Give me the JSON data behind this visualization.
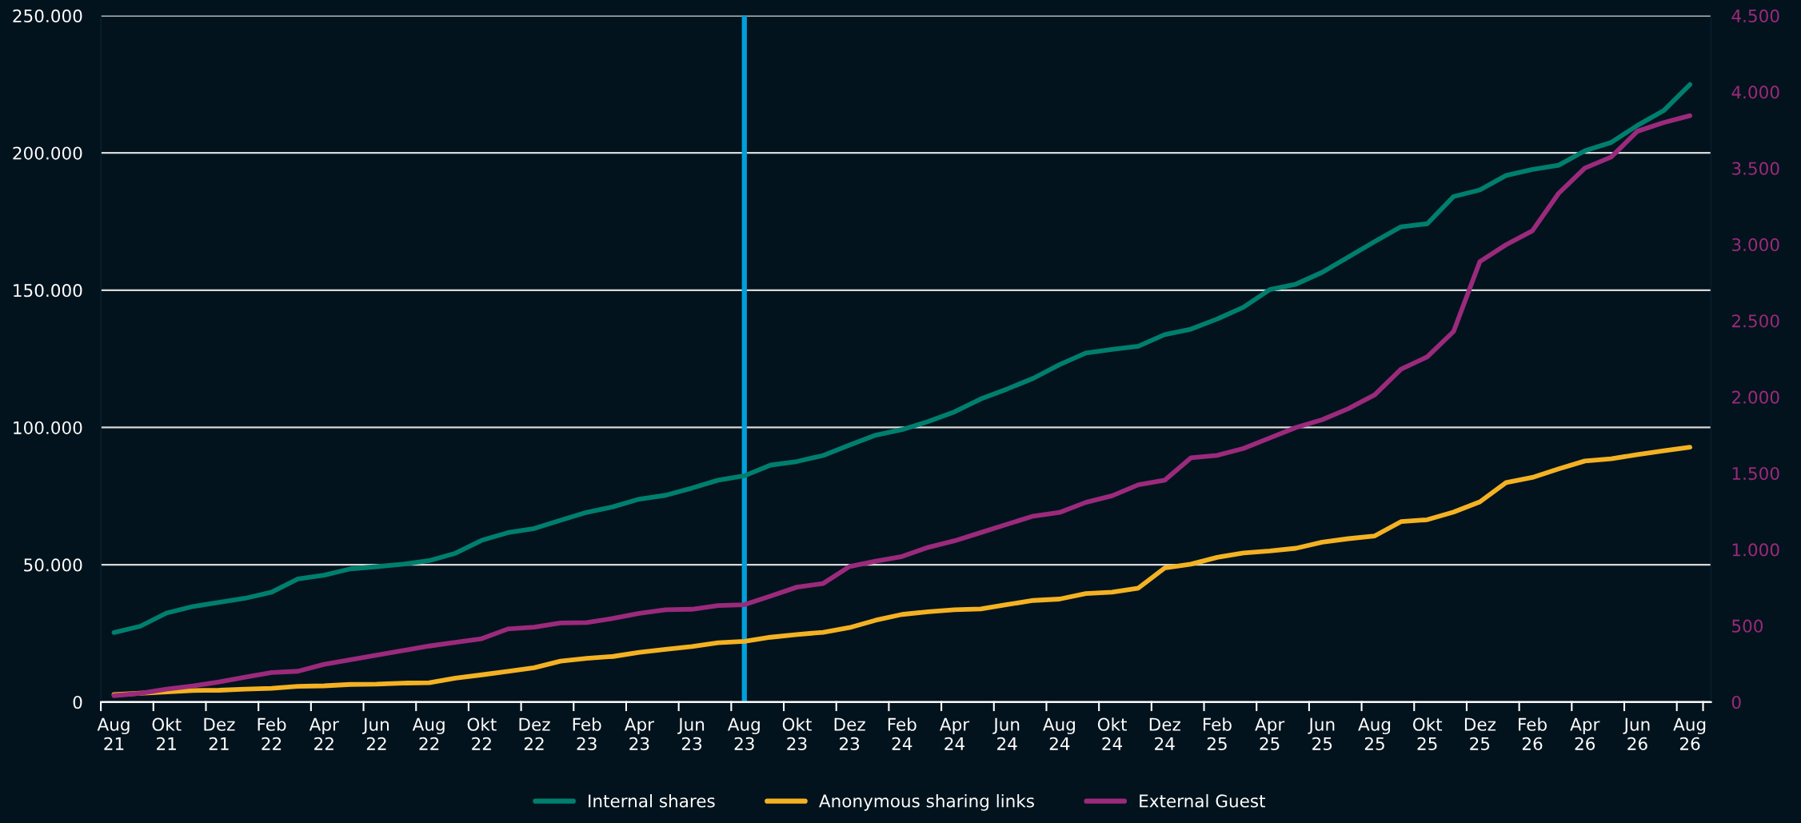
{
  "chart_data": {
    "type": "line",
    "categories": [
      "Aug\n21",
      null,
      "Okt\n21",
      null,
      "Dez\n21",
      null,
      "Feb\n22",
      null,
      "Apr\n22",
      null,
      "Jun\n22",
      null,
      "Aug\n22",
      null,
      "Okt\n22",
      null,
      "Dez\n22",
      null,
      "Feb\n23",
      null,
      "Apr\n23",
      null,
      "Jun\n23",
      null,
      "Aug\n23",
      null,
      "Okt\n23",
      null,
      "Dez\n23",
      null,
      "Feb\n24",
      null,
      "Apr\n24",
      null,
      "Jun\n24",
      null,
      "Aug\n24",
      null,
      "Okt\n24",
      null,
      "Dez\n24",
      null,
      "Feb\n25",
      null,
      "Apr\n25",
      null,
      "Jun\n25",
      null,
      "Aug\n25",
      null,
      "Okt\n25",
      null,
      "Dez\n25",
      null,
      "Feb\n26",
      null,
      "Apr\n26",
      null,
      "Jun\n26",
      null,
      "Aug\n26"
    ],
    "series": [
      {
        "name": "Internal shares",
        "color": "#007f6e",
        "values": [
          25300,
          27600,
          32400,
          34800,
          36300,
          37800,
          40000,
          44800,
          46200,
          48500,
          49300,
          50200,
          51500,
          54200,
          58900,
          61700,
          63200,
          66200,
          69100,
          71100,
          73900,
          75300,
          77900,
          80800,
          82400,
          86300,
          87600,
          89800,
          93600,
          97200,
          99200,
          102200,
          105700,
          110400,
          114000,
          117900,
          122900,
          127100,
          128400,
          129600,
          133800,
          135800,
          139500,
          143800,
          150200,
          152200,
          156500,
          162100,
          167700,
          173100,
          174200,
          184100,
          186500,
          191800,
          194000,
          195500,
          200800,
          203800,
          210000,
          215400,
          224900
        ]
      },
      {
        "name": "Anonymous sharing links",
        "color": "#f4b223",
        "values": [
          2700,
          3200,
          3700,
          4200,
          4300,
          4700,
          5000,
          5700,
          5900,
          6400,
          6500,
          6900,
          7000,
          8700,
          9900,
          11200,
          12500,
          14900,
          15900,
          16600,
          18100,
          19200,
          20200,
          21600,
          22100,
          23600,
          24600,
          25400,
          27100,
          29800,
          31900,
          32900,
          33600,
          33900,
          35500,
          37000,
          37500,
          39500,
          40000,
          41500,
          48800,
          50200,
          52700,
          54300,
          55000,
          56000,
          58200,
          59500,
          60500,
          65700,
          66400,
          69200,
          72900,
          79900,
          81800,
          84900,
          87800,
          88600,
          90100,
          91500,
          92800
        ]
      },
      {
        "name": "External Guest",
        "color": "#9b2a7c",
        "axis": "y2",
        "values": [
          42,
          57,
          84,
          105,
          132,
          163,
          193,
          202,
          247,
          277,
          307,
          337,
          367,
          391,
          415,
          479,
          491,
          518,
          521,
          548,
          581,
          605,
          608,
          632,
          638,
          695,
          753,
          777,
          888,
          924,
          954,
          1014,
          1057,
          1111,
          1165,
          1219,
          1243,
          1309,
          1352,
          1424,
          1454,
          1601,
          1617,
          1662,
          1731,
          1800,
          1851,
          1924,
          2014,
          2182,
          2263,
          2429,
          2887,
          2998,
          3089,
          3335,
          3501,
          3573,
          3742,
          3799,
          3844
        ]
      }
    ],
    "ylim": [
      0,
      250000
    ],
    "yticks": [
      {
        "value": 0,
        "label": "0"
      },
      {
        "value": 50000,
        "label": "50.000"
      },
      {
        "value": 100000,
        "label": "100.000"
      },
      {
        "value": 150000,
        "label": "150.000"
      },
      {
        "value": 200000,
        "label": "200.000"
      },
      {
        "value": 250000,
        "label": "250.000"
      }
    ],
    "y2lim": [
      0,
      4500
    ],
    "y2ticks": [
      0,
      500,
      {
        "value": 1000,
        "label": "1.000"
      },
      {
        "value": 1500,
        "label": "1.500"
      },
      {
        "value": 2000,
        "label": "2.000"
      },
      {
        "value": 2500,
        "label": "2.500"
      },
      {
        "value": 3000,
        "label": "3.000"
      },
      {
        "value": 3500,
        "label": "3.500"
      },
      {
        "value": 4000,
        "label": "4.000"
      },
      {
        "value": 4500,
        "label": "4.500"
      }
    ],
    "ref_lines": [
      {
        "axis": "x",
        "value": "Aug\n23",
        "color": "#00a0dc"
      }
    ],
    "grid": "y",
    "legend": "bottom",
    "marker": "none",
    "line_style": "solid"
  }
}
